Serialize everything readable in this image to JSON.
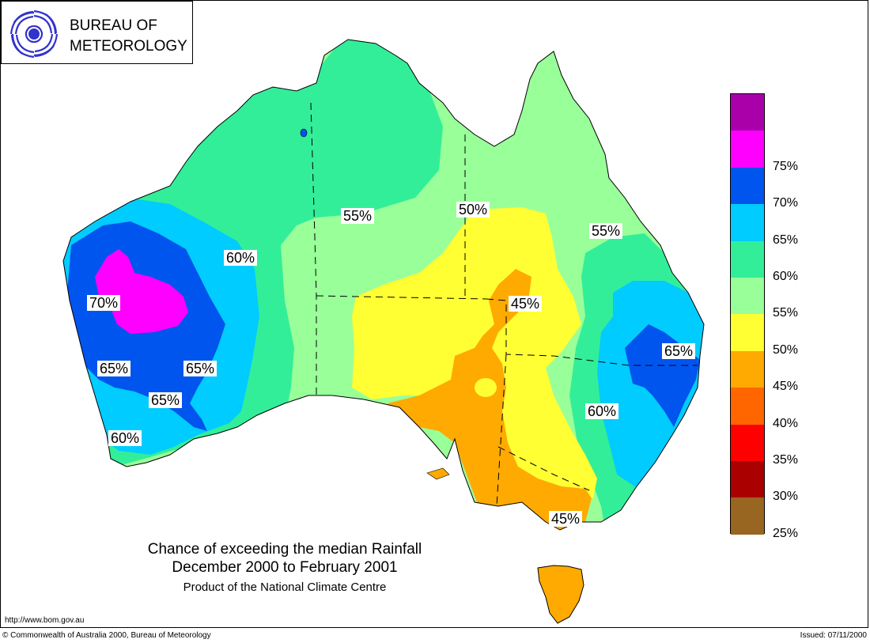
{
  "logo": {
    "line1": "BUREAU OF",
    "line2": "METEOROLOGY",
    "icon": "bom-swirl-icon"
  },
  "title": {
    "line1": "Chance of exceeding the median Rainfall",
    "line2": "December 2000 to February 2001",
    "line3": "Product of the National Climate Centre"
  },
  "footer": {
    "url": "http://www.bom.gov.au",
    "copyright": "© Commonwealth of Australia 2000, Bureau of Meteorology",
    "issued": "Issued: 07/11/2000"
  },
  "legend": {
    "items": [
      {
        "label": "",
        "color": "#aa00aa"
      },
      {
        "label": "75%",
        "color": "#ff00ff"
      },
      {
        "label": "70%",
        "color": "#0055ee"
      },
      {
        "label": "65%",
        "color": "#00ccff"
      },
      {
        "label": "60%",
        "color": "#33ee99"
      },
      {
        "label": "55%",
        "color": "#99ff99"
      },
      {
        "label": "50%",
        "color": "#ffff33"
      },
      {
        "label": "45%",
        "color": "#ffaa00"
      },
      {
        "label": "40%",
        "color": "#ff6600"
      },
      {
        "label": "35%",
        "color": "#ff0000"
      },
      {
        "label": "30%",
        "color": "#aa0000"
      },
      {
        "label": "25%",
        "color": "#996622"
      }
    ]
  },
  "contour_labels": [
    {
      "text": "55%"
    },
    {
      "text": "50%"
    },
    {
      "text": "55%"
    },
    {
      "text": "60%"
    },
    {
      "text": "70%"
    },
    {
      "text": "45%"
    },
    {
      "text": "65%"
    },
    {
      "text": "65%"
    },
    {
      "text": "65%"
    },
    {
      "text": "65%"
    },
    {
      "text": "60%"
    },
    {
      "text": "60%"
    },
    {
      "text": "45%"
    }
  ],
  "colors": {
    "c70": "#ff00ff",
    "c65": "#0055ee",
    "c60": "#00ccff",
    "c55": "#33ee99",
    "c50": "#99ff99",
    "c45": "#ffff33",
    "c40": "#ffaa00"
  }
}
